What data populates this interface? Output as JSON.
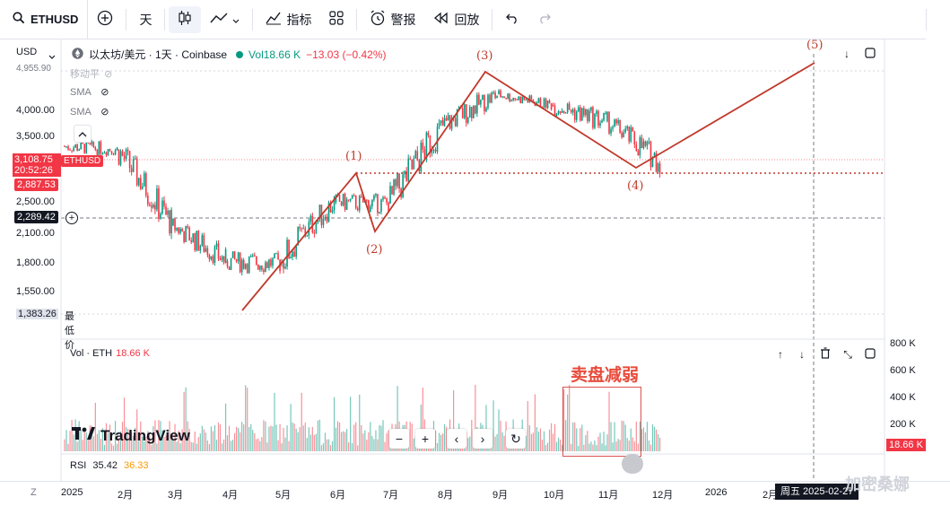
{
  "toolbar": {
    "symbol": "ETHUSD",
    "interval": "天",
    "indicators_label": "指标",
    "alerts_label": "警报",
    "replay_label": "回放"
  },
  "legend": {
    "currency": "USD",
    "title": "以太坊/美元 · 1天 · Coinbase",
    "vol_label": "Vol",
    "vol_value": "18.66 K",
    "change": "−13.03 (−0.42%)",
    "indicator_1": "移动平",
    "sma_1": "SMA",
    "sma_2": "SMA"
  },
  "price_axis": {
    "labels": [
      "4,000.00",
      "3,500.00",
      "2,500.00",
      "2,100.00",
      "1,800.00",
      "1,550.00"
    ],
    "top_label": "4,955.90",
    "current_price": "3,108.75",
    "countdown": "20:52:26",
    "symbol_badge": "ETHUSD",
    "level_badge": "2,887.53",
    "cursor_price": "2,289.42",
    "low_price": "1,383.26",
    "low_label": "最低价"
  },
  "volume_pane": {
    "title": "Vol · ETH",
    "value": "18.66 K",
    "axis": [
      "800 K",
      "600 K",
      "400 K",
      "200 K"
    ],
    "current_badge": "18.66 K"
  },
  "rsi_pane": {
    "label": "RSI",
    "value_1": "35.42",
    "value_2": "36.33"
  },
  "time_axis": {
    "labels": [
      "2025",
      "2月",
      "3月",
      "4月",
      "5月",
      "6月",
      "7月",
      "8月",
      "9月",
      "10月",
      "11月",
      "12月",
      "2026",
      "2月"
    ],
    "date_badge": "周五 2025-02-27",
    "scale_button": "Z"
  },
  "annotations": {
    "wave_1": "(1)",
    "wave_2": "(2)",
    "wave_3": "(3)",
    "wave_4": "(4)",
    "wave_5": "(5)",
    "sell_weakening": "卖盘减弱"
  },
  "branding": {
    "logo_text": "TradingView",
    "watermark": "加密桑娜"
  },
  "colors": {
    "up": "#089981",
    "down": "#f23645",
    "wave_line": "#c0392b",
    "accent": "#2962ff"
  },
  "chart_data": {
    "type": "candlestick",
    "x_unit": "month",
    "y_unit": "USD",
    "ylim": [
      1383.26,
      4955.9
    ],
    "waves": [
      {
        "label": "(1)",
        "price": 2887
      },
      {
        "label": "(2)",
        "price": 2100
      },
      {
        "label": "(3)",
        "price": 4955.9
      },
      {
        "label": "(4)",
        "price": 2900
      },
      {
        "label": "(5)",
        "price": 5100
      }
    ],
    "candles": [
      {
        "m": "2025-01",
        "o": 3350,
        "h": 3600,
        "l": 3000,
        "c": 3300
      },
      {
        "m": "2025-02",
        "o": 3300,
        "h": 3450,
        "l": 2100,
        "c": 2200
      },
      {
        "m": "2025-03",
        "o": 2200,
        "h": 2500,
        "l": 1800,
        "c": 1820
      },
      {
        "m": "2025-04",
        "o": 1820,
        "h": 1950,
        "l": 1383,
        "c": 1800
      },
      {
        "m": "2025-05",
        "o": 1800,
        "h": 2750,
        "l": 1750,
        "c": 2500
      },
      {
        "m": "2025-06",
        "o": 2500,
        "h": 2887,
        "l": 2100,
        "c": 2480
      },
      {
        "m": "2025-07",
        "o": 2480,
        "h": 3900,
        "l": 2350,
        "c": 3700
      },
      {
        "m": "2025-08",
        "o": 3700,
        "h": 4955,
        "l": 3500,
        "c": 4400
      },
      {
        "m": "2025-09",
        "o": 4400,
        "h": 4700,
        "l": 3900,
        "c": 4150
      },
      {
        "m": "2025-10",
        "o": 4150,
        "h": 4800,
        "l": 3500,
        "c": 3800
      },
      {
        "m": "2025-11",
        "o": 3800,
        "h": 4100,
        "l": 2900,
        "c": 3108
      }
    ]
  }
}
